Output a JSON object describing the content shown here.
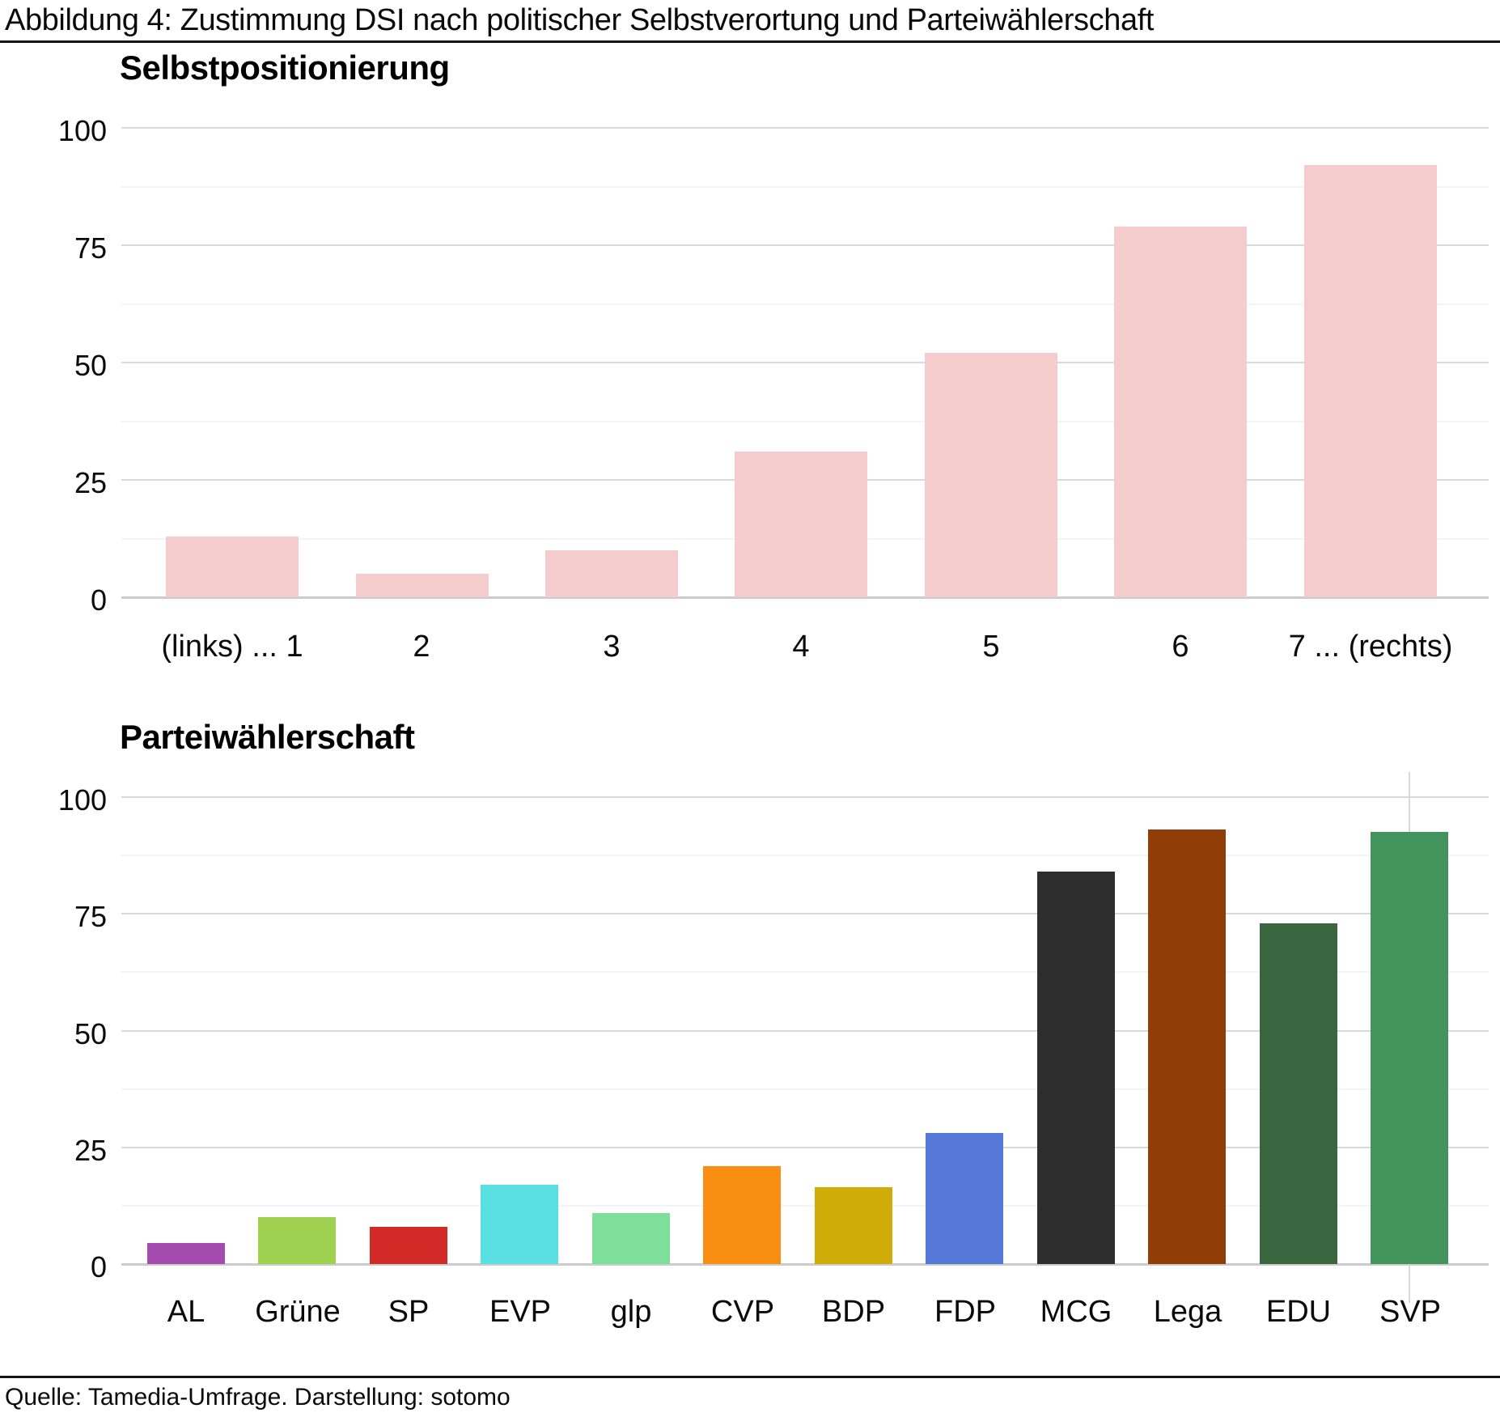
{
  "page_title": "Abbildung 4: Zustimmung DSI nach politischer Selbstverortung und Parteiwählerschaft",
  "footer": "Quelle: Tamedia-Umfrage. Darstellung: sotomo",
  "colors": {
    "grid_major": "#d9d9d9",
    "grid_minor": "#f4f4f4",
    "axis_line": "#cccccc",
    "rule": "#141414",
    "text": "#000000"
  },
  "chart_data": [
    {
      "type": "bar",
      "title": "Selbstpositionierung",
      "categories": [
        "(links) ... 1",
        "2",
        "3",
        "4",
        "5",
        "6",
        "7 ... (rechts)"
      ],
      "values": [
        13,
        5,
        10,
        31,
        52,
        79,
        92
      ],
      "bar_color": "#f4cccd",
      "ylim": [
        0,
        100
      ],
      "yticks": [
        0,
        25,
        50,
        75,
        100
      ],
      "minor_gridlines": [
        12.5,
        37.5,
        62.5,
        87.5
      ],
      "xlabel": "",
      "ylabel": "",
      "legend": "none",
      "grid": "horizontal"
    },
    {
      "type": "bar",
      "title": "Parteiwählerschaft",
      "categories": [
        "AL",
        "Grüne",
        "SP",
        "EVP",
        "glp",
        "CVP",
        "BDP",
        "FDP",
        "MCG",
        "Lega",
        "EDU",
        "SVP"
      ],
      "values": [
        4.5,
        10,
        8,
        17,
        11,
        21,
        16.5,
        28,
        84,
        93,
        73,
        92.5
      ],
      "bar_colors": [
        "#a44bb0",
        "#a0d050",
        "#d22b27",
        "#5adfe2",
        "#7ddf9a",
        "#fa8e12",
        "#cfac08",
        "#5578d7",
        "#2e2e2e",
        "#903d08",
        "#3a663f",
        "#43945c"
      ],
      "ylim": [
        0,
        100
      ],
      "yticks": [
        0,
        25,
        50,
        75,
        100
      ],
      "minor_gridlines": [
        12.5,
        37.5,
        62.5,
        87.5
      ],
      "xlabel": "",
      "ylabel": "",
      "legend": "none",
      "grid": "horizontal",
      "crosshair": {
        "category": "SVP",
        "color": "#d9d9d9"
      }
    }
  ]
}
